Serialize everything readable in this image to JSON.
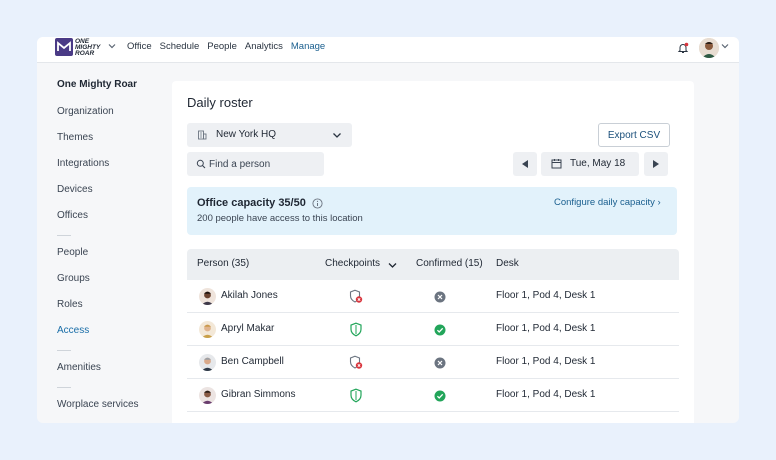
{
  "topbar": {
    "logo_text": "ONE MIGHTY ROAR",
    "nav": [
      "Office",
      "Schedule",
      "People",
      "Analytics",
      "Manage"
    ],
    "active_nav": "Manage"
  },
  "sidebar": {
    "title": "One Mighty Roar",
    "groups": [
      [
        "Organization",
        "Themes",
        "Integrations",
        "Devices",
        "Offices"
      ],
      [
        "People",
        "Groups",
        "Roles",
        "Access"
      ],
      [
        "Amenities"
      ],
      [
        "Worplace services"
      ]
    ],
    "active_item": "Access"
  },
  "roster": {
    "title": "Daily roster",
    "location": "New York HQ",
    "search_placeholder": "Find a person",
    "export_label": "Export CSV",
    "date": "Tue, May 18",
    "capacity_title": "Office capacity 35/50",
    "capacity_sub": "200 people have access to this location",
    "capacity_link": "Configure daily capacity ›"
  },
  "table": {
    "headers": {
      "person": "Person (35)",
      "checkpoints": "Checkpoints",
      "confirmed": "Confirmed (15)",
      "desk": "Desk"
    },
    "rows": [
      {
        "name": "Akilah Jones",
        "checkpoint": "failed",
        "confirmed": false,
        "desk": "Floor 1, Pod 4, Desk 1"
      },
      {
        "name": "Apryl Makar",
        "checkpoint": "passed",
        "confirmed": true,
        "desk": "Floor 1, Pod 4, Desk 1"
      },
      {
        "name": "Ben Campbell",
        "checkpoint": "failed",
        "confirmed": false,
        "desk": "Floor 1, Pod 4, Desk 1"
      },
      {
        "name": "Gibran Simmons",
        "checkpoint": "passed",
        "confirmed": true,
        "desk": "Floor 1, Pod 4, Desk 1"
      }
    ]
  },
  "colors": {
    "accent": "#1a5f8f",
    "success": "#22a55a",
    "danger": "#d9363e",
    "neutral_icon": "#6b7480"
  }
}
